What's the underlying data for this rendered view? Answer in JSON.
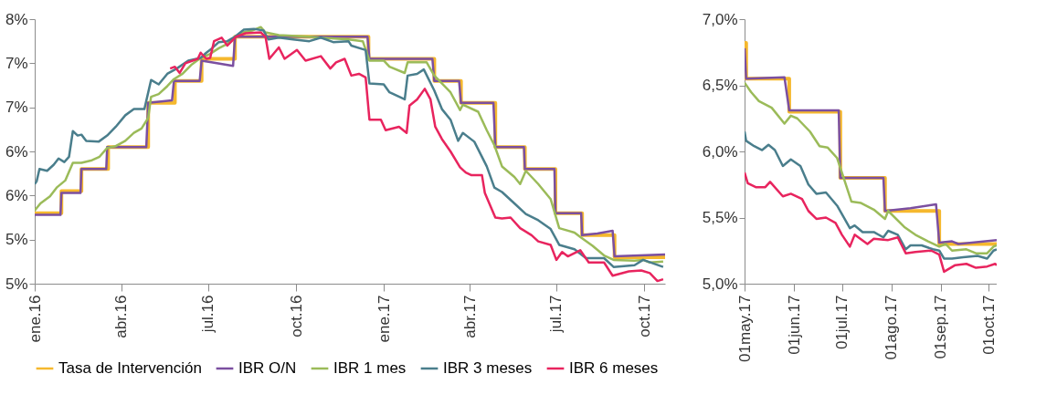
{
  "chart_data": [
    {
      "type": "line",
      "xlim": [
        "2016-01-01",
        "2017-10-23"
      ],
      "ylim": [
        5,
        8
      ],
      "xticks": [
        {
          "value": "2016-01-01",
          "label": "ene.16"
        },
        {
          "value": "2016-04-01",
          "label": "abr.16"
        },
        {
          "value": "2016-07-01",
          "label": "jul.16"
        },
        {
          "value": "2016-10-01",
          "label": "oct.16"
        },
        {
          "value": "2017-01-01",
          "label": "ene.17"
        },
        {
          "value": "2017-04-01",
          "label": "abr.17"
        },
        {
          "value": "2017-07-01",
          "label": "jul.17"
        },
        {
          "value": "2017-10-01",
          "label": "oct.17"
        }
      ],
      "yticks": [
        {
          "value": 5,
          "label": "5%"
        },
        {
          "value": 5.5,
          "label": "5%"
        },
        {
          "value": 6,
          "label": "6%"
        },
        {
          "value": 6.5,
          "label": "6%"
        },
        {
          "value": 7,
          "label": "7%"
        },
        {
          "value": 7.5,
          "label": "7%"
        },
        {
          "value": 8,
          "label": "8%"
        }
      ],
      "grid": false,
      "legend": "bottom",
      "series": [
        {
          "name": "Tasa de Intervención",
          "type": "step",
          "color": "#f5b82e",
          "x": [
            "2016-01-01",
            "2016-01-29",
            "2016-02-19",
            "2016-03-18",
            "2016-04-29",
            "2016-05-27",
            "2016-06-24",
            "2016-07-29",
            "2016-12-16",
            "2017-02-23",
            "2017-03-23",
            "2017-04-28",
            "2017-05-29",
            "2017-06-30",
            "2017-07-28",
            "2017-08-31",
            "2017-10-23"
          ],
          "values": [
            5.8,
            6.05,
            6.3,
            6.55,
            7.05,
            7.3,
            7.55,
            7.8,
            7.55,
            7.3,
            7.05,
            6.55,
            6.3,
            5.8,
            5.55,
            5.3,
            5.3
          ]
        },
        {
          "name": "IBR O/N",
          "color": "#7b4fa0",
          "x": [
            "2016-01-01",
            "2016-01-28",
            "2016-01-29",
            "2016-02-18",
            "2016-02-19",
            "2016-03-16",
            "2016-03-17",
            "2016-04-27",
            "2016-04-29",
            "2016-05-24",
            "2016-05-26",
            "2016-06-22",
            "2016-06-24",
            "2016-07-10",
            "2016-07-27",
            "2016-07-29",
            "2016-09-01",
            "2016-12-15",
            "2016-12-17",
            "2017-02-21",
            "2017-02-23",
            "2017-03-21",
            "2017-03-23",
            "2017-04-26",
            "2017-04-28",
            "2017-05-28",
            "2017-05-29",
            "2017-06-29",
            "2017-06-30",
            "2017-07-27",
            "2017-07-28",
            "2017-08-13",
            "2017-08-29",
            "2017-08-31",
            "2017-10-23"
          ],
          "values": [
            5.78,
            5.78,
            6.03,
            6.03,
            6.3,
            6.3,
            6.55,
            6.55,
            7.05,
            7.08,
            7.3,
            7.3,
            7.53,
            7.5,
            7.47,
            7.8,
            7.8,
            7.8,
            7.55,
            7.55,
            7.3,
            7.3,
            7.05,
            7.05,
            6.55,
            6.55,
            6.3,
            6.3,
            5.8,
            5.8,
            5.55,
            5.57,
            5.6,
            5.31,
            5.33
          ]
        },
        {
          "name": "IBR 1 mes",
          "color": "#9bbb59",
          "x": [
            "2016-01-01",
            "2016-01-07",
            "2016-01-17",
            "2016-01-24",
            "2016-02-02",
            "2016-02-10",
            "2016-02-19",
            "2016-03-01",
            "2016-03-09",
            "2016-03-17",
            "2016-03-26",
            "2016-04-05",
            "2016-04-14",
            "2016-04-22",
            "2016-04-29",
            "2016-05-02",
            "2016-05-10",
            "2016-05-19",
            "2016-05-26",
            "2016-06-04",
            "2016-06-13",
            "2016-06-23",
            "2016-07-02",
            "2016-07-12",
            "2016-07-21",
            "2016-07-29",
            "2016-08-06",
            "2016-08-16",
            "2016-08-25",
            "2016-08-30",
            "2016-09-13",
            "2016-10-15",
            "2016-10-27",
            "2016-11-25",
            "2016-12-10",
            "2016-12-17",
            "2017-01-01",
            "2017-01-07",
            "2017-01-23",
            "2017-01-26",
            "2017-02-15",
            "2017-02-23",
            "2017-03-12",
            "2017-03-22",
            "2017-03-25",
            "2017-04-10",
            "2017-04-19",
            "2017-04-27",
            "2017-05-05",
            "2017-05-18",
            "2017-05-24",
            "2017-05-30",
            "2017-06-12",
            "2017-06-25",
            "2017-07-04",
            "2017-07-20",
            "2017-07-26",
            "2017-08-08",
            "2017-08-20",
            "2017-08-30",
            "2017-09-21",
            "2017-09-30",
            "2017-10-07",
            "2017-10-21"
          ],
          "values": [
            5.83,
            5.91,
            5.99,
            6.09,
            6.17,
            6.37,
            6.37,
            6.4,
            6.44,
            6.54,
            6.56,
            6.62,
            6.71,
            6.76,
            6.88,
            7.12,
            7.15,
            7.24,
            7.32,
            7.38,
            7.48,
            7.56,
            7.6,
            7.67,
            7.72,
            7.8,
            7.85,
            7.87,
            7.91,
            7.85,
            7.82,
            7.8,
            7.79,
            7.77,
            7.75,
            7.53,
            7.53,
            7.46,
            7.39,
            7.51,
            7.51,
            7.36,
            7.17,
            6.97,
            7.03,
            6.95,
            6.74,
            6.57,
            6.33,
            6.21,
            6.13,
            6.28,
            6.13,
            5.96,
            5.63,
            5.58,
            5.53,
            5.43,
            5.32,
            5.27,
            5.26,
            5.27,
            5.24,
            5.25
          ]
        },
        {
          "name": "IBR 3 meses",
          "color": "#4a7e8c",
          "x": [
            "2016-01-01",
            "2016-01-03",
            "2016-01-06",
            "2016-01-14",
            "2016-01-21",
            "2016-01-26",
            "2016-02-01",
            "2016-02-06",
            "2016-02-10",
            "2016-02-15",
            "2016-02-19",
            "2016-02-24",
            "2016-03-08",
            "2016-03-17",
            "2016-03-26",
            "2016-04-05",
            "2016-04-14",
            "2016-04-25",
            "2016-05-02",
            "2016-05-10",
            "2016-05-19",
            "2016-05-29",
            "2016-06-10",
            "2016-06-23",
            "2016-06-29",
            "2016-07-05",
            "2016-07-12",
            "2016-07-21",
            "2016-07-29",
            "2016-08-07",
            "2016-08-18",
            "2016-08-28",
            "2016-09-02",
            "2016-09-13",
            "2016-09-28",
            "2016-10-15",
            "2016-10-27",
            "2016-11-09",
            "2016-11-25",
            "2016-11-28",
            "2016-12-13",
            "2016-12-17",
            "2017-01-01",
            "2017-01-07",
            "2017-01-23",
            "2017-01-26",
            "2017-02-05",
            "2017-02-12",
            "2017-02-23",
            "2017-03-03",
            "2017-03-12",
            "2017-03-20",
            "2017-03-25",
            "2017-04-06",
            "2017-04-19",
            "2017-04-27",
            "2017-05-05",
            "2017-05-18",
            "2017-05-30",
            "2017-06-12",
            "2017-06-25",
            "2017-07-04",
            "2017-07-20",
            "2017-08-01",
            "2017-08-20",
            "2017-08-30",
            "2017-09-21",
            "2017-09-30",
            "2017-10-21"
          ],
          "values": [
            6.13,
            6.16,
            6.3,
            6.28,
            6.35,
            6.42,
            6.38,
            6.44,
            6.73,
            6.68,
            6.69,
            6.62,
            6.61,
            6.68,
            6.78,
            6.91,
            6.98,
            6.98,
            7.31,
            7.26,
            7.38,
            7.44,
            7.53,
            7.56,
            7.62,
            7.67,
            7.74,
            7.75,
            7.8,
            7.88,
            7.89,
            7.87,
            7.77,
            7.79,
            7.77,
            7.75,
            7.79,
            7.74,
            7.75,
            7.7,
            7.65,
            7.27,
            7.26,
            7.17,
            7.09,
            7.36,
            7.38,
            7.43,
            7.19,
            6.98,
            6.86,
            6.62,
            6.71,
            6.61,
            6.33,
            6.09,
            6.04,
            5.91,
            5.79,
            5.72,
            5.62,
            5.44,
            5.39,
            5.29,
            5.29,
            5.19,
            5.21,
            5.27,
            5.19
          ]
        },
        {
          "name": "IBR 6 meses",
          "color": "#e8245e",
          "x": [
            "2016-05-22",
            "2016-05-27",
            "2016-06-01",
            "2016-06-07",
            "2016-06-20",
            "2016-06-23",
            "2016-06-29",
            "2016-07-03",
            "2016-07-07",
            "2016-07-15",
            "2016-07-21",
            "2016-07-30",
            "2016-08-09",
            "2016-08-25",
            "2016-08-30",
            "2016-09-03",
            "2016-09-13",
            "2016-09-19",
            "2016-10-02",
            "2016-10-11",
            "2016-10-27",
            "2016-11-06",
            "2016-11-12",
            "2016-11-21",
            "2016-11-28",
            "2016-12-06",
            "2016-12-13",
            "2016-12-17",
            "2016-12-29",
            "2017-01-03",
            "2017-01-17",
            "2017-01-25",
            "2017-01-28",
            "2017-02-05",
            "2017-02-13",
            "2017-02-19",
            "2017-02-24",
            "2017-03-03",
            "2017-03-12",
            "2017-03-22",
            "2017-03-28",
            "2017-04-03",
            "2017-04-14",
            "2017-04-17",
            "2017-04-28",
            "2017-05-05",
            "2017-05-14",
            "2017-05-24",
            "2017-06-05",
            "2017-06-12",
            "2017-06-25",
            "2017-07-01",
            "2017-07-07",
            "2017-07-13",
            "2017-07-26",
            "2017-08-04",
            "2017-08-20",
            "2017-08-29",
            "2017-09-15",
            "2017-09-28",
            "2017-10-07",
            "2017-10-15",
            "2017-10-21"
          ],
          "values": [
            7.44,
            7.46,
            7.39,
            7.5,
            7.55,
            7.62,
            7.55,
            7.56,
            7.75,
            7.79,
            7.7,
            7.8,
            7.84,
            7.85,
            7.8,
            7.55,
            7.68,
            7.55,
            7.65,
            7.53,
            7.58,
            7.44,
            7.51,
            7.55,
            7.36,
            7.38,
            7.34,
            6.86,
            6.86,
            6.74,
            6.78,
            6.71,
            7.02,
            7.09,
            7.21,
            7.09,
            6.78,
            6.64,
            6.5,
            6.32,
            6.26,
            6.23,
            6.23,
            6.03,
            5.75,
            5.74,
            5.75,
            5.63,
            5.55,
            5.48,
            5.44,
            5.27,
            5.36,
            5.31,
            5.38,
            5.24,
            5.24,
            5.09,
            5.14,
            5.15,
            5.12,
            5.03,
            5.05
          ]
        }
      ]
    },
    {
      "type": "line",
      "xlim": [
        "2017-05-01",
        "2017-10-06"
      ],
      "ylim": [
        5,
        7
      ],
      "xticks": [
        {
          "value": "2017-05-01",
          "label": "01may.17"
        },
        {
          "value": "2017-06-01",
          "label": "01jun.17"
        },
        {
          "value": "2017-07-01",
          "label": "01jul.17"
        },
        {
          "value": "2017-08-01",
          "label": "01ago.17"
        },
        {
          "value": "2017-09-01",
          "label": "01sep.17"
        },
        {
          "value": "2017-10-01",
          "label": "01oct.17"
        }
      ],
      "yticks": [
        {
          "value": 5,
          "label": "5,0%"
        },
        {
          "value": 5.5,
          "label": "5,5%"
        },
        {
          "value": 6,
          "label": "6,0%"
        },
        {
          "value": 6.5,
          "label": "6,5%"
        },
        {
          "value": 7,
          "label": "7,0%"
        }
      ],
      "grid": false,
      "legend": false,
      "series": [
        {
          "type": "step",
          "color": "#f5b82e",
          "x": [
            "2017-05-01",
            "2017-05-02",
            "2017-05-29",
            "2017-06-30",
            "2017-07-28",
            "2017-08-31",
            "2017-10-06"
          ],
          "values": [
            6.82,
            6.55,
            6.3,
            5.8,
            5.55,
            5.3,
            5.3
          ]
        },
        {
          "color": "#7b4fa0",
          "x": [
            "2017-05-01",
            "2017-05-02",
            "2017-05-26",
            "2017-05-29",
            "2017-06-29",
            "2017-06-30",
            "2017-07-27",
            "2017-07-28",
            "2017-08-13",
            "2017-08-29",
            "2017-08-31",
            "2017-09-08",
            "2017-09-12",
            "2017-10-06"
          ],
          "values": [
            6.78,
            6.55,
            6.56,
            6.31,
            6.31,
            5.8,
            5.8,
            5.55,
            5.57,
            5.6,
            5.31,
            5.32,
            5.3,
            5.33
          ]
        },
        {
          "color": "#9bbb59",
          "x": [
            "2017-05-01",
            "2017-05-05",
            "2017-05-10",
            "2017-05-18",
            "2017-05-26",
            "2017-05-30",
            "2017-06-03",
            "2017-06-11",
            "2017-06-17",
            "2017-06-22",
            "2017-06-28",
            "2017-07-01",
            "2017-07-07",
            "2017-07-13",
            "2017-07-21",
            "2017-07-28",
            "2017-07-30",
            "2017-08-09",
            "2017-08-16",
            "2017-08-24",
            "2017-08-31",
            "2017-09-04",
            "2017-09-08",
            "2017-09-17",
            "2017-09-23",
            "2017-09-30",
            "2017-10-04",
            "2017-10-06"
          ],
          "values": [
            6.52,
            6.45,
            6.38,
            6.33,
            6.21,
            6.27,
            6.25,
            6.15,
            6.04,
            6.03,
            5.95,
            5.84,
            5.62,
            5.61,
            5.56,
            5.49,
            5.55,
            5.43,
            5.37,
            5.32,
            5.28,
            5.3,
            5.25,
            5.26,
            5.23,
            5.23,
            5.28,
            5.29
          ]
        },
        {
          "color": "#4a7e8c",
          "x": [
            "2017-05-01",
            "2017-05-02",
            "2017-05-07",
            "2017-05-12",
            "2017-05-16",
            "2017-05-20",
            "2017-05-25",
            "2017-05-30",
            "2017-06-05",
            "2017-06-10",
            "2017-06-15",
            "2017-06-21",
            "2017-06-28",
            "2017-07-06",
            "2017-07-09",
            "2017-07-14",
            "2017-07-21",
            "2017-07-27",
            "2017-07-30",
            "2017-08-05",
            "2017-08-10",
            "2017-08-13",
            "2017-08-20",
            "2017-08-27",
            "2017-08-31",
            "2017-09-03",
            "2017-09-08",
            "2017-09-15",
            "2017-09-24",
            "2017-09-30",
            "2017-10-04",
            "2017-10-06"
          ],
          "values": [
            6.15,
            6.08,
            6.04,
            6.01,
            6.05,
            6.01,
            5.89,
            5.94,
            5.89,
            5.75,
            5.68,
            5.69,
            5.59,
            5.42,
            5.44,
            5.39,
            5.39,
            5.35,
            5.4,
            5.37,
            5.26,
            5.29,
            5.29,
            5.26,
            5.25,
            5.19,
            5.19,
            5.2,
            5.21,
            5.19,
            5.25,
            5.26
          ]
        },
        {
          "color": "#e8245e",
          "x": [
            "2017-05-01",
            "2017-05-03",
            "2017-05-08",
            "2017-05-14",
            "2017-05-17",
            "2017-05-25",
            "2017-05-30",
            "2017-06-06",
            "2017-06-10",
            "2017-06-15",
            "2017-06-21",
            "2017-06-27",
            "2017-07-01",
            "2017-07-06",
            "2017-07-09",
            "2017-07-17",
            "2017-07-21",
            "2017-07-30",
            "2017-08-05",
            "2017-08-10",
            "2017-08-16",
            "2017-08-26",
            "2017-08-31",
            "2017-09-03",
            "2017-09-10",
            "2017-09-17",
            "2017-09-23",
            "2017-09-30",
            "2017-10-05",
            "2017-10-06"
          ],
          "values": [
            5.84,
            5.76,
            5.73,
            5.73,
            5.77,
            5.66,
            5.68,
            5.64,
            5.55,
            5.49,
            5.5,
            5.46,
            5.37,
            5.28,
            5.37,
            5.3,
            5.34,
            5.33,
            5.35,
            5.23,
            5.24,
            5.25,
            5.22,
            5.09,
            5.14,
            5.15,
            5.12,
            5.13,
            5.15,
            5.14
          ]
        }
      ]
    }
  ]
}
